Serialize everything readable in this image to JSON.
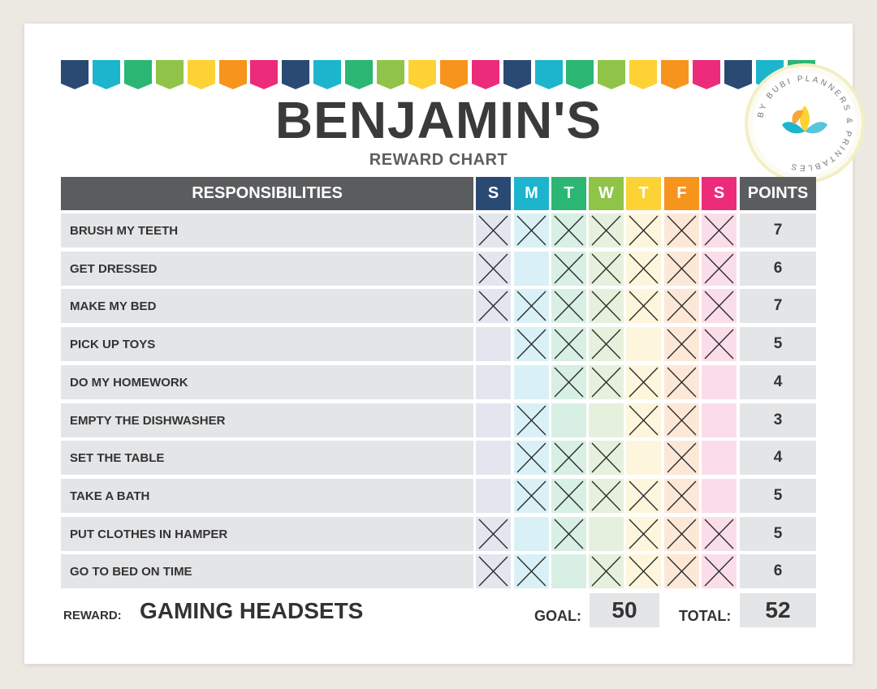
{
  "title": "BENJAMIN'S",
  "subtitle": "REWARD CHART",
  "logo_text": "BY BUBI PLANNERS & PRINTABLES",
  "colors": {
    "bunting": [
      "#2b4a73",
      "#1db4cd",
      "#2bb673",
      "#8fc449",
      "#fdd234",
      "#f7941d",
      "#ec2c7b"
    ],
    "days": [
      "#2b4a73",
      "#1db4cd",
      "#2bb673",
      "#8fc449",
      "#fdd234",
      "#f7941d",
      "#ec2c7b"
    ],
    "day_tints": [
      "#e3e6ee",
      "#d9f1f6",
      "#d8efe3",
      "#e5f1dc",
      "#fdf6dc",
      "#fde8d8",
      "#fbdde9"
    ]
  },
  "header": {
    "responsibilities": "RESPONSIBILITIES",
    "days": [
      "S",
      "M",
      "T",
      "W",
      "T",
      "F",
      "S"
    ],
    "points": "POINTS"
  },
  "rows": [
    {
      "task": "BRUSH MY TEETH",
      "checks": [
        1,
        1,
        1,
        1,
        1,
        1,
        1
      ],
      "points": "7"
    },
    {
      "task": "GET DRESSED",
      "checks": [
        1,
        0,
        1,
        1,
        1,
        1,
        1
      ],
      "points": "6"
    },
    {
      "task": "MAKE MY BED",
      "checks": [
        1,
        1,
        1,
        1,
        1,
        1,
        1
      ],
      "points": "7"
    },
    {
      "task": "PICK UP TOYS",
      "checks": [
        0,
        1,
        1,
        1,
        0,
        1,
        1
      ],
      "points": "5"
    },
    {
      "task": "DO MY HOMEWORK",
      "checks": [
        0,
        0,
        1,
        1,
        1,
        1,
        0
      ],
      "points": "4"
    },
    {
      "task": "EMPTY THE DISHWASHER",
      "checks": [
        0,
        1,
        0,
        0,
        1,
        1,
        0
      ],
      "points": "3"
    },
    {
      "task": "SET THE TABLE",
      "checks": [
        0,
        1,
        1,
        1,
        0,
        1,
        0
      ],
      "points": "4"
    },
    {
      "task": "TAKE A BATH",
      "checks": [
        0,
        1,
        1,
        1,
        1,
        1,
        0
      ],
      "points": "5"
    },
    {
      "task": "PUT CLOTHES IN HAMPER",
      "checks": [
        1,
        0,
        1,
        0,
        1,
        1,
        1
      ],
      "points": "5"
    },
    {
      "task": "GO TO BED ON TIME",
      "checks": [
        1,
        1,
        0,
        1,
        1,
        1,
        1
      ],
      "points": "6"
    }
  ],
  "footer": {
    "reward_label": "REWARD:",
    "reward_value": "GAMING HEADSETS",
    "goal_label": "GOAL:",
    "goal_value": "50",
    "total_label": "TOTAL:",
    "total_value": "52"
  }
}
